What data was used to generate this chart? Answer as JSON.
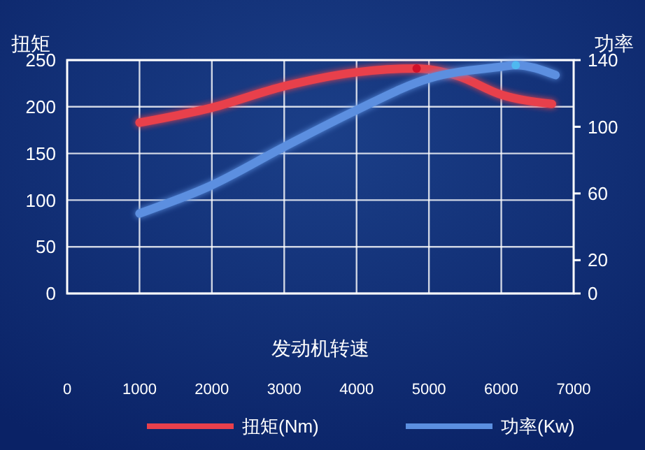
{
  "chart_data": {
    "type": "line",
    "xlabel": "发动机转速",
    "ylabel": "扭矩",
    "y2label": "功率",
    "xlim": [
      0,
      7000
    ],
    "xticks": [
      0,
      1000,
      2000,
      3000,
      4000,
      5000,
      6000,
      7000
    ],
    "ylim": [
      0,
      250
    ],
    "yticks": [
      0,
      50,
      100,
      150,
      200,
      250
    ],
    "y2lim": [
      0,
      140
    ],
    "y2ticks": [
      0,
      20,
      60,
      100,
      140
    ],
    "grid": true,
    "legend": "bottom",
    "line_style": "solid",
    "series": [
      {
        "name": "扭矩(Nm)",
        "color": "#e8404c",
        "x": [
          1000,
          2000,
          3000,
          4000,
          4830,
          5400,
          6000,
          6700
        ],
        "values": [
          183,
          199,
          222,
          237,
          241,
          233,
          213,
          203
        ]
      },
      {
        "name": "功率(Kw)",
        "color": "#5b8fe0",
        "axis": "y2",
        "x": [
          1000,
          2000,
          3000,
          4000,
          5000,
          6000,
          6200,
          6750
        ],
        "values": [
          48,
          65,
          88,
          110,
          129,
          136,
          137,
          131
        ]
      },
      {
        "type": "scatter",
        "color": "#d0102a",
        "x": [
          4830
        ],
        "values": [
          241
        ],
        "marker": "circle"
      },
      {
        "type": "scatter",
        "color": "#4fb8f0",
        "axis": "y2",
        "x": [
          6200
        ],
        "values": [
          137
        ],
        "marker": "circle"
      }
    ]
  }
}
